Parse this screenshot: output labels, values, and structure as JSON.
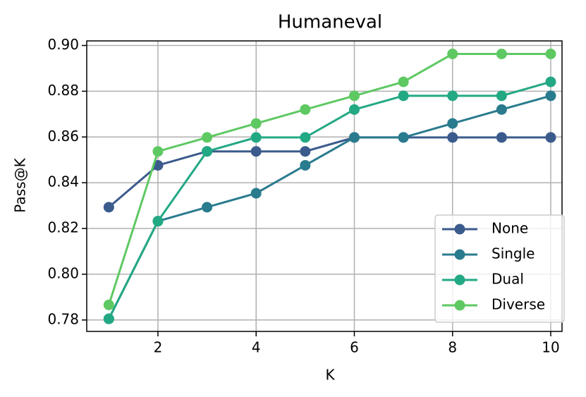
{
  "chart_data": {
    "type": "line",
    "title": "Humaneval",
    "x_label": "K",
    "y_label": "Pass@K",
    "x": [
      1,
      2,
      3,
      4,
      5,
      6,
      7,
      8,
      9,
      10
    ],
    "series": [
      {
        "name": "None",
        "color": "#3b5b8c",
        "values": [
          0.8293,
          0.8476,
          0.8537,
          0.8537,
          0.8537,
          0.8598,
          0.8598,
          0.8598,
          0.8598,
          0.8598
        ]
      },
      {
        "name": "Single",
        "color": "#2a7b8e",
        "values": [
          0.7805,
          0.8232,
          0.8293,
          0.8354,
          0.8476,
          0.8598,
          0.8598,
          0.8659,
          0.872,
          0.878
        ]
      },
      {
        "name": "Dual",
        "color": "#23a884",
        "values": [
          0.7805,
          0.8232,
          0.8537,
          0.8598,
          0.8598,
          0.872,
          0.878,
          0.878,
          0.878,
          0.8841
        ]
      },
      {
        "name": "Diverse",
        "color": "#5ec962",
        "values": [
          0.7866,
          0.8537,
          0.8598,
          0.8659,
          0.872,
          0.878,
          0.8841,
          0.8963,
          0.8963,
          0.8963
        ]
      }
    ],
    "xlim": [
      0.55,
      10.23
    ],
    "ylim": [
      0.775,
      0.902
    ],
    "xticks": [
      2,
      4,
      6,
      8,
      10
    ],
    "yticks": [
      0.78,
      {
        "value": 0.8,
        "label": "0.80"
      },
      0.82,
      0.84,
      0.86,
      0.88,
      {
        "value": 0.9,
        "label": "0.90"
      }
    ],
    "grid": true,
    "legend_position": "lower right"
  }
}
